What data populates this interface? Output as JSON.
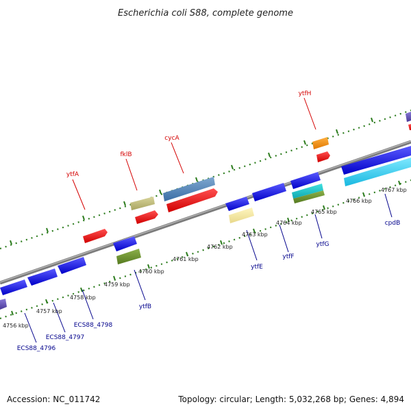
{
  "title": "Escherichia coli S88, complete genome",
  "footer": {
    "accession": "Accession: NC_011742",
    "summary": "Topology: circular; Length: 5,032,268 bp; Genes: 4,894"
  },
  "colors": {
    "backbone": "#8c8c8c",
    "tick": "#2e7d1f",
    "label_top": "#d40000",
    "label_bottom": "#00008b"
  },
  "ticks": [
    "4756 kbp",
    "4757 kbp",
    "4758 kbp",
    "4759 kbp",
    "4760 kbp",
    "4761 kbp",
    "4762 kbp",
    "4763 kbp",
    "4764 kbp",
    "4765 kbp",
    "4766 kbp",
    "4767 kbp"
  ],
  "gene_labels_top": [
    "ytfA",
    "fklB",
    "cycA",
    "ytfH"
  ],
  "gene_labels_bottom": [
    "ECS88_4796",
    "ECS88_4797",
    "ECS88_4798",
    "ytfB",
    "ytfE",
    "ytfF",
    "ytfG",
    "cpdB"
  ]
}
